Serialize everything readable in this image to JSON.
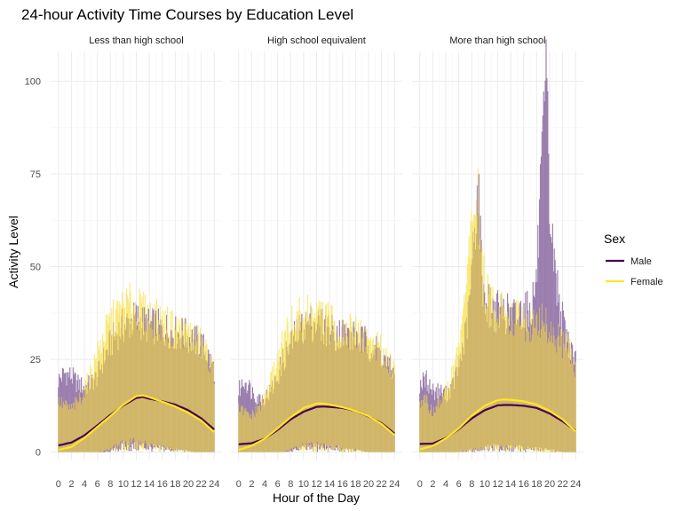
{
  "chart_data": {
    "type": "line",
    "title": "24-hour Activity Time Courses by Education Level",
    "xlabel": "Hour of the Day",
    "ylabel": "Activity Level",
    "x_ticks": [
      0,
      2,
      4,
      6,
      8,
      10,
      12,
      14,
      16,
      18,
      20,
      22,
      24
    ],
    "y_ticks": [
      0,
      25,
      50,
      75,
      100
    ],
    "xlim": [
      -1.2,
      25.2
    ],
    "ylim": [
      -2,
      108
    ],
    "grid": true,
    "legend": {
      "title": "Sex",
      "position": "right",
      "entries": [
        {
          "name": "Male",
          "color": "#440154"
        },
        {
          "name": "Female",
          "color": "#FDE725"
        }
      ]
    },
    "panels": [
      {
        "label": "Less than high school",
        "band_upper": {
          "x": [
            0,
            1,
            2,
            3,
            4,
            5,
            6,
            7,
            8,
            9,
            10,
            11,
            12,
            13,
            14,
            15,
            16,
            17,
            18,
            19,
            20,
            21,
            22,
            23,
            24
          ],
          "male": [
            20,
            22,
            21,
            19,
            18,
            19,
            21,
            26,
            30,
            33,
            35,
            36,
            37,
            36,
            35,
            35,
            34,
            34,
            33,
            33,
            32,
            31,
            30,
            27,
            23
          ],
          "female": [
            14,
            13,
            12,
            14,
            17,
            22,
            27,
            32,
            36,
            38,
            40,
            41,
            40,
            39,
            38,
            37,
            36,
            35,
            34,
            34,
            33,
            32,
            30,
            27,
            22
          ]
        },
        "band_lower": {
          "x": [
            0,
            1,
            2,
            3,
            4,
            5,
            6,
            7,
            8,
            9,
            10,
            11,
            12,
            13,
            14,
            15,
            16,
            17,
            18,
            19,
            20,
            21,
            22,
            23,
            24
          ],
          "male": [
            0,
            0,
            0,
            0,
            0,
            0,
            0,
            0,
            0.5,
            2,
            3,
            3,
            3,
            3,
            2.5,
            2,
            2,
            1.5,
            1,
            1,
            0.5,
            0,
            0,
            0,
            0
          ],
          "female": [
            0,
            0,
            0,
            0,
            0,
            0,
            0,
            0.5,
            1.5,
            2.5,
            3.5,
            4,
            4,
            3.5,
            3,
            2.5,
            2,
            1.5,
            1,
            1,
            0.5,
            0,
            0,
            0,
            0
          ]
        },
        "series": [
          {
            "name": "Male",
            "x": [
              0,
              2,
              4,
              6,
              8,
              10,
              12,
              13,
              14,
              16,
              18,
              20,
              22,
              24
            ],
            "values": [
              1.8,
              2.6,
              4.5,
              7.2,
              10,
              12.6,
              14.6,
              14.9,
              14.4,
              13.7,
              12.8,
              11.3,
              9.1,
              6.1
            ]
          },
          {
            "name": "Female",
            "x": [
              0,
              2,
              4,
              6,
              8,
              10,
              12,
              13,
              14,
              16,
              18,
              20,
              22,
              24
            ],
            "values": [
              0.6,
              1.4,
              3.8,
              6.8,
              9.7,
              12.8,
              15.1,
              15.3,
              14.8,
              13.6,
              12.3,
              10.6,
              8.5,
              5.4
            ]
          }
        ]
      },
      {
        "label": "High school equivalent",
        "band_upper": {
          "x": [
            0,
            1,
            2,
            3,
            4,
            5,
            6,
            7,
            8,
            9,
            10,
            11,
            12,
            13,
            14,
            15,
            16,
            17,
            18,
            19,
            20,
            21,
            22,
            23,
            24
          ],
          "male": [
            17,
            20,
            17,
            15,
            15,
            17,
            21,
            26,
            30,
            33,
            35,
            36,
            36,
            35,
            34,
            33,
            33,
            32,
            32,
            31,
            30,
            29,
            27,
            24,
            22
          ],
          "female": [
            12,
            11,
            10,
            12,
            15,
            20,
            26,
            31,
            35,
            37,
            38,
            38,
            38,
            37,
            36,
            35,
            34,
            34,
            33,
            32,
            31,
            30,
            28,
            26,
            23
          ]
        },
        "band_lower": {
          "x": [
            0,
            1,
            2,
            3,
            4,
            5,
            6,
            7,
            8,
            9,
            10,
            11,
            12,
            13,
            14,
            15,
            16,
            17,
            18,
            19,
            20,
            21,
            22,
            23,
            24
          ],
          "male": [
            0,
            0,
            0,
            0,
            0,
            0,
            0,
            0,
            0.5,
            1.5,
            2,
            2,
            2.5,
            2.5,
            2,
            2,
            1.5,
            1,
            1,
            0.5,
            0,
            0,
            0,
            0,
            0
          ],
          "female": [
            0,
            0,
            0,
            0,
            0,
            0,
            0,
            0,
            1,
            2,
            2.5,
            3,
            3,
            2.5,
            2,
            2,
            1.5,
            1,
            1,
            0.5,
            0,
            0,
            0,
            0,
            0
          ]
        },
        "series": [
          {
            "name": "Male",
            "x": [
              0,
              2,
              4,
              6,
              8,
              10,
              12,
              13,
              14,
              16,
              18,
              20,
              22,
              24
            ],
            "values": [
              2.1,
              2.4,
              3.6,
              6,
              8.8,
              10.9,
              12.2,
              12.3,
              12.2,
              11.9,
              11.1,
              9.6,
              7.8,
              5
            ]
          },
          {
            "name": "Female",
            "x": [
              0,
              2,
              4,
              6,
              8,
              10,
              12,
              13,
              14,
              16,
              18,
              20,
              22,
              24
            ],
            "values": [
              0.6,
              1.7,
              3.6,
              6.4,
              9.4,
              11.9,
              13.1,
              13.1,
              12.8,
              12.1,
              11.1,
              9.7,
              7.6,
              4.6
            ]
          }
        ]
      },
      {
        "label": "More than high school",
        "band_upper": {
          "x": [
            0,
            1,
            2,
            3,
            4,
            5,
            6,
            7,
            7.5,
            8,
            8.5,
            9,
            9.5,
            10,
            11,
            12,
            13,
            14,
            15,
            16,
            17,
            18,
            18.5,
            19,
            19.5,
            20,
            20.5,
            21,
            22,
            23,
            24
          ],
          "male": [
            19,
            20,
            17,
            17,
            16,
            18,
            24,
            32,
            38,
            50,
            63,
            74,
            52,
            42,
            40,
            39,
            39,
            38,
            38,
            40,
            39,
            48,
            68,
            84,
            104,
            66,
            56,
            48,
            36,
            30,
            26
          ],
          "female": [
            14,
            14,
            11,
            14,
            17,
            21,
            28,
            42,
            54,
            63,
            70,
            68,
            55,
            45,
            42,
            40,
            39,
            38,
            37,
            36,
            35,
            35,
            37,
            36,
            35,
            34,
            33,
            32,
            30,
            28,
            24
          ]
        },
        "band_lower": {
          "x": [
            0,
            2,
            4,
            6,
            8,
            10,
            12,
            14,
            16,
            18,
            20,
            22,
            24
          ],
          "male": [
            0,
            0,
            0,
            0,
            1,
            2,
            2.5,
            2,
            2,
            1.5,
            1,
            0,
            0
          ],
          "female": [
            0,
            0,
            0,
            0,
            1,
            2,
            2,
            2,
            1.5,
            1,
            0.5,
            0,
            0
          ]
        },
        "series": [
          {
            "name": "Male",
            "x": [
              0,
              2,
              4,
              6,
              8,
              10,
              12,
              13,
              14,
              16,
              18,
              20,
              22,
              24
            ],
            "values": [
              2.2,
              2.3,
              3.8,
              6.2,
              9.1,
              11.3,
              12.6,
              12.7,
              12.7,
              12.5,
              11.9,
              10.4,
              8.3,
              5.8
            ]
          },
          {
            "name": "Female",
            "x": [
              0,
              2,
              4,
              6,
              8,
              10,
              12,
              13,
              14,
              16,
              18,
              20,
              22,
              24
            ],
            "values": [
              0.7,
              1.7,
              3.7,
              6.4,
              9.8,
              12.5,
              14.0,
              14.2,
              14.1,
              13.7,
              12.8,
              11.1,
              8.8,
              5.6
            ]
          }
        ]
      }
    ]
  },
  "colors": {
    "male_band": "#9b7fae",
    "female_band": "#f9e97a",
    "overlap_band": "#d1b66a",
    "male_line": "#440154",
    "female_line": "#FDE725",
    "grid_major": "#ebebeb",
    "grid_minor": "#f5f5f5"
  }
}
